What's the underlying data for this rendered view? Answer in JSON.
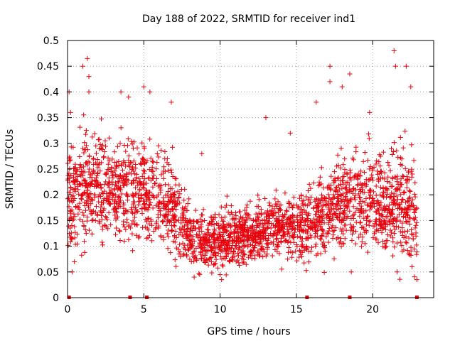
{
  "chart_data": {
    "type": "scatter",
    "title": "Day 188 of 2022, SRMTID for receiver ind1",
    "xlabel": "GPS time / hours",
    "ylabel": "SRMTID / TECUs",
    "xlim": [
      0,
      24
    ],
    "ylim": [
      0,
      0.5
    ],
    "x_ticks": [
      0,
      5,
      10,
      15,
      20
    ],
    "y_ticks": [
      0,
      0.05,
      0.1,
      0.15,
      0.2,
      0.25,
      0.3,
      0.35,
      0.4,
      0.45,
      0.5
    ],
    "grid": true,
    "marker": "+",
    "color": "#e8000b",
    "zero_markers_x": [
      0.1,
      4.1,
      5.2,
      15.7,
      18.5,
      22.9
    ],
    "envelope": {
      "description": "approximate hourly median and spread of the dense cloud of points",
      "hours": [
        0,
        1,
        2,
        3,
        4,
        5,
        6,
        7,
        8,
        9,
        10,
        11,
        12,
        13,
        14,
        15,
        16,
        17,
        18,
        19,
        20,
        21,
        22,
        23
      ],
      "median": [
        0.2,
        0.21,
        0.22,
        0.21,
        0.21,
        0.21,
        0.19,
        0.17,
        0.12,
        0.11,
        0.11,
        0.12,
        0.12,
        0.13,
        0.14,
        0.14,
        0.15,
        0.16,
        0.19,
        0.19,
        0.2,
        0.17,
        0.2,
        0.14
      ],
      "spread": [
        0.09,
        0.09,
        0.09,
        0.08,
        0.08,
        0.08,
        0.08,
        0.07,
        0.05,
        0.05,
        0.05,
        0.05,
        0.05,
        0.05,
        0.05,
        0.06,
        0.06,
        0.07,
        0.08,
        0.08,
        0.08,
        0.08,
        0.1,
        0.08
      ]
    },
    "outliers": [
      {
        "x": 0.1,
        "y": 0.4
      },
      {
        "x": 0.2,
        "y": 0.36
      },
      {
        "x": 1.0,
        "y": 0.45
      },
      {
        "x": 1.3,
        "y": 0.465
      },
      {
        "x": 1.4,
        "y": 0.43
      },
      {
        "x": 1.4,
        "y": 0.4
      },
      {
        "x": 3.5,
        "y": 0.4
      },
      {
        "x": 4.0,
        "y": 0.39
      },
      {
        "x": 5.0,
        "y": 0.41
      },
      {
        "x": 5.4,
        "y": 0.4
      },
      {
        "x": 6.8,
        "y": 0.38
      },
      {
        "x": 8.8,
        "y": 0.28
      },
      {
        "x": 13.0,
        "y": 0.35
      },
      {
        "x": 14.6,
        "y": 0.32
      },
      {
        "x": 16.3,
        "y": 0.38
      },
      {
        "x": 17.2,
        "y": 0.45
      },
      {
        "x": 17.2,
        "y": 0.42
      },
      {
        "x": 18.0,
        "y": 0.41
      },
      {
        "x": 18.5,
        "y": 0.435
      },
      {
        "x": 19.8,
        "y": 0.36
      },
      {
        "x": 21.4,
        "y": 0.48
      },
      {
        "x": 21.5,
        "y": 0.45
      },
      {
        "x": 22.2,
        "y": 0.45
      },
      {
        "x": 22.5,
        "y": 0.41
      },
      {
        "x": 8.3,
        "y": 0.04
      },
      {
        "x": 10.1,
        "y": 0.035
      },
      {
        "x": 22.9,
        "y": 0.035
      },
      {
        "x": 0.3,
        "y": 0.05
      },
      {
        "x": 18.6,
        "y": 0.05
      },
      {
        "x": 21.6,
        "y": 0.05
      }
    ]
  }
}
